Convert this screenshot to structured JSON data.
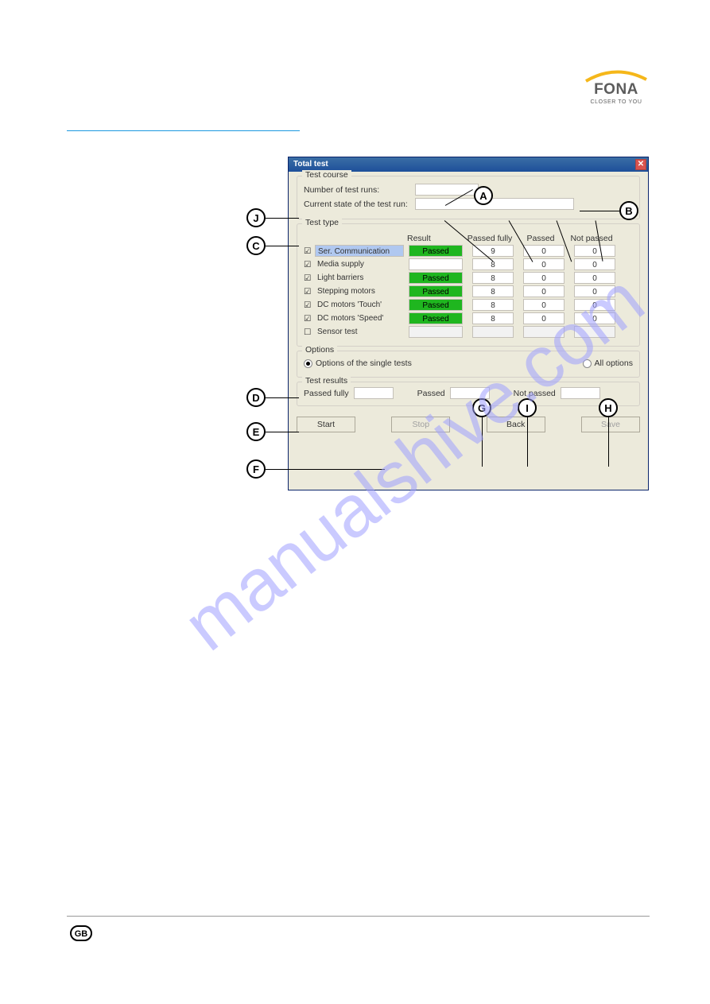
{
  "logo": {
    "brand": "FONA",
    "tagline": "CLOSER TO YOU"
  },
  "dialog": {
    "title": "Total test",
    "test_course": {
      "group": "Test course",
      "runs_label": "Number of test runs:",
      "state_label": "Current state of the test run:"
    },
    "test_type": {
      "group": "Test type",
      "columns": {
        "result": "Result",
        "full": "Passed fully",
        "passed": "Passed",
        "not": "Not passed"
      },
      "rows": [
        {
          "name": "Ser. Communication",
          "checked": true,
          "highlighted": true,
          "result": "Passed",
          "full": "9",
          "passed": "0",
          "not": "0"
        },
        {
          "name": "Media supply",
          "checked": true,
          "highlighted": false,
          "result": "",
          "full": "8",
          "passed": "0",
          "not": "0"
        },
        {
          "name": "Light barriers",
          "checked": true,
          "highlighted": false,
          "result": "Passed",
          "full": "8",
          "passed": "0",
          "not": "0"
        },
        {
          "name": "Stepping motors",
          "checked": true,
          "highlighted": false,
          "result": "Passed",
          "full": "8",
          "passed": "0",
          "not": "0"
        },
        {
          "name": "DC motors 'Touch'",
          "checked": true,
          "highlighted": false,
          "result": "Passed",
          "full": "8",
          "passed": "0",
          "not": "0"
        },
        {
          "name": "DC motors 'Speed'",
          "checked": true,
          "highlighted": false,
          "result": "Passed",
          "full": "8",
          "passed": "0",
          "not": "0"
        },
        {
          "name": "Sensor test",
          "checked": false,
          "highlighted": false,
          "result": "",
          "full": "",
          "passed": "",
          "not": ""
        }
      ]
    },
    "options": {
      "group": "Options",
      "single": "Options of the single tests",
      "all": "All options"
    },
    "results": {
      "group": "Test results",
      "full": "Passed fully",
      "passed": "Passed",
      "not": "Not passed"
    },
    "buttons": {
      "start": "Start",
      "stop": "Stop",
      "back": "Back",
      "save": "Save"
    }
  },
  "callouts": {
    "A": "A",
    "B": "B",
    "C": "C",
    "D": "D",
    "E": "E",
    "F": "F",
    "G": "G",
    "H": "H",
    "I": "I",
    "J": "J"
  },
  "watermark": "manualshive.com",
  "footer": {
    "lang": "GB"
  },
  "colors": {
    "dialog_bg": "#eceadb",
    "titlebar_start": "#3a6ea5",
    "titlebar_end": "#1e4f9a",
    "passed_bg": "#1fb61f",
    "blue_rule": "#1b98e0",
    "watermark_color": "#9fa0ff"
  }
}
